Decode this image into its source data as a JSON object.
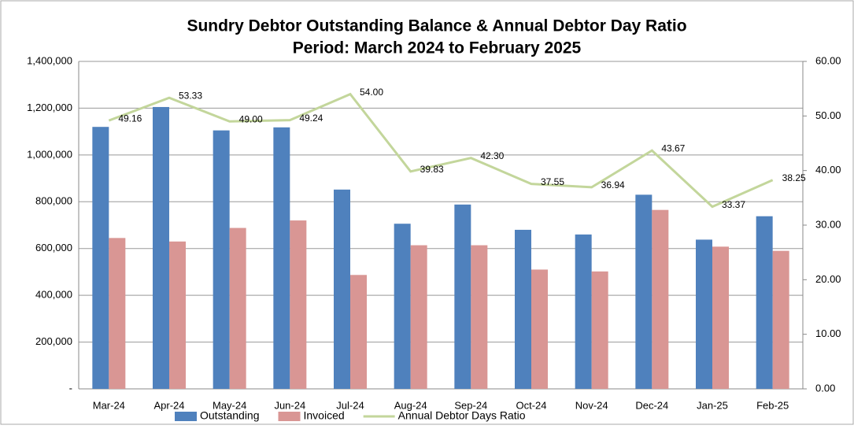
{
  "chart_data": {
    "type": "bar_line",
    "title": "Sundry Debtor Outstanding Balance & Annual Debtor Day Ratio",
    "subtitle": "Period: March 2024 to February 2025",
    "categories": [
      "Mar-24",
      "Apr-24",
      "May-24",
      "Jun-24",
      "Jul-24",
      "Aug-24",
      "Sep-24",
      "Oct-24",
      "Nov-24",
      "Dec-24",
      "Jan-25",
      "Feb-25"
    ],
    "series": [
      {
        "name": "Outstanding",
        "color": "#4f81bd",
        "type": "bar",
        "values": [
          1120000,
          1205000,
          1105000,
          1118000,
          852000,
          706000,
          788000,
          680000,
          660000,
          830000,
          638000,
          738000
        ]
      },
      {
        "name": "Invoiced",
        "color": "#d99694",
        "type": "bar",
        "values": [
          645000,
          630000,
          688000,
          720000,
          487000,
          614000,
          614000,
          510000,
          502000,
          765000,
          608000,
          590000
        ]
      },
      {
        "name": "Annual Debtor Days Ratio",
        "color": "#c3d69b",
        "type": "line",
        "axis": "y2",
        "values": [
          49.16,
          53.33,
          49,
          49.24,
          54,
          39.83,
          42.3,
          37.55,
          36.94,
          43.67,
          33.37,
          38.25
        ],
        "value_labels": [
          "49.16",
          "53.33",
          "49.00",
          "49.24",
          "54.00",
          "39.83",
          "42.30",
          "37.55",
          "36.94",
          "43.67",
          "33.37",
          "38.25"
        ]
      }
    ],
    "ylim": [
      0,
      1400000
    ],
    "yticks": [
      {
        "value": 0,
        "label": "-"
      },
      {
        "value": 200000,
        "label": "200,000"
      },
      {
        "value": 400000,
        "label": "400,000"
      },
      {
        "value": 600000,
        "label": "600,000"
      },
      {
        "value": 800000,
        "label": "800,000"
      },
      {
        "value": 1000000,
        "label": "1,000,000"
      },
      {
        "value": 1200000,
        "label": "1,200,000"
      },
      {
        "value": 1400000,
        "label": "1,400,000"
      }
    ],
    "y2lim": [
      0,
      60
    ],
    "y2ticks": [
      {
        "value": 0,
        "label": "0.00"
      },
      {
        "value": 10,
        "label": "10.00"
      },
      {
        "value": 20,
        "label": "20.00"
      },
      {
        "value": 30,
        "label": "30.00"
      },
      {
        "value": 40,
        "label": "40.00"
      },
      {
        "value": 50,
        "label": "50.00"
      },
      {
        "value": 60,
        "label": "60.00"
      }
    ],
    "grid": true,
    "legend": "bottom"
  }
}
